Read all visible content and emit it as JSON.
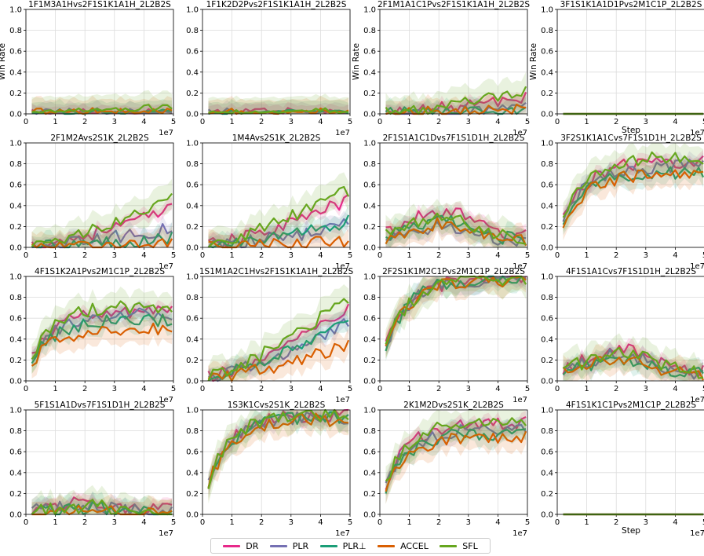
{
  "figure": {
    "legend": [
      {
        "name": "DR",
        "color": "#e7298a"
      },
      {
        "name": "PLR",
        "color": "#7570b3"
      },
      {
        "name": "PLR⊥",
        "color": "#1b9e77"
      },
      {
        "name": "ACCEL",
        "color": "#d95f02"
      },
      {
        "name": "SFL",
        "color": "#66a61e"
      }
    ],
    "x_exponent_label": "1e7",
    "x_label": "Step",
    "y_label": "Win Rate"
  },
  "chart_data": [
    {
      "type": "line",
      "title": "1F1M3A1Hvs2F1S1K1A1H_2L2B2S",
      "ylabel": "Win Rate",
      "xlim": [
        0,
        5
      ],
      "ylim": [
        0,
        1
      ],
      "xticks": [
        0,
        1,
        2,
        3,
        4,
        5
      ],
      "yticks": [
        0,
        0.2,
        0.4,
        0.6,
        0.8,
        1
      ],
      "level": [
        0.02,
        0.02,
        0.02,
        0.02,
        0.05
      ],
      "shape": "flat"
    },
    {
      "type": "line",
      "title": "1F1K2D2Pvs2F1S1K1A1H_2L2B2S",
      "ylabel": "",
      "xlim": [
        0,
        5
      ],
      "ylim": [
        0,
        1
      ],
      "xticks": [
        0,
        1,
        2,
        3,
        4,
        5
      ],
      "yticks": [
        0,
        0.2,
        0.4,
        0.6,
        0.8,
        1
      ],
      "level": [
        0.02,
        0.02,
        0.02,
        0.02,
        0.02
      ],
      "shape": "flat"
    },
    {
      "type": "line",
      "title": "2F1M1A1C1Pvs2F1S1K1A1H_2L2B2S",
      "ylabel": "Win Rate",
      "xlim": [
        0,
        5
      ],
      "ylim": [
        0,
        1
      ],
      "xticks": [
        0,
        1,
        2,
        3,
        4,
        5
      ],
      "yticks": [
        0,
        0.2,
        0.4,
        0.6,
        0.8,
        1
      ],
      "level": [
        0.15,
        0.05,
        0.04,
        0.03,
        0.2
      ],
      "shape": "grow"
    },
    {
      "type": "line",
      "title": "3F1S1K1A1D1Pvs2M1C1P_2L2B2S",
      "ylabel": "Win Rate",
      "xlabel": "Step",
      "xlim": [
        0,
        5
      ],
      "ylim": [
        0,
        1
      ],
      "xticks": [
        0,
        1,
        2,
        3,
        4,
        5
      ],
      "yticks": [
        0,
        0.2,
        0.4,
        0.6,
        0.8,
        1
      ],
      "level": [
        0,
        0,
        0,
        0,
        0
      ],
      "shape": "zero"
    },
    {
      "type": "line",
      "title": "2F1M2Avs2S1K_2L2B2S",
      "ylabel": "",
      "xlim": [
        0,
        5
      ],
      "ylim": [
        0,
        1
      ],
      "xticks": [
        0,
        1,
        2,
        3,
        4,
        5
      ],
      "yticks": [
        0,
        0.2,
        0.4,
        0.6,
        0.8,
        1
      ],
      "level": [
        0.36,
        0.18,
        0.1,
        0.03,
        0.45
      ],
      "shape": "grow"
    },
    {
      "type": "line",
      "title": "1M4Avs2S1K_2L2B2S",
      "ylabel": "",
      "xlim": [
        0,
        5
      ],
      "ylim": [
        0,
        1
      ],
      "xticks": [
        0,
        1,
        2,
        3,
        4,
        5
      ],
      "yticks": [
        0,
        0.2,
        0.4,
        0.6,
        0.8,
        1
      ],
      "level": [
        0.45,
        0.22,
        0.25,
        0.06,
        0.55
      ],
      "shape": "grow"
    },
    {
      "type": "line",
      "title": "2F1S1A1C1Dvs7F1S1D1H_2L2B2S",
      "ylabel": "",
      "xlim": [
        0,
        5
      ],
      "ylim": [
        0,
        1
      ],
      "xticks": [
        0,
        1,
        2,
        3,
        4,
        5
      ],
      "yticks": [
        0,
        0.2,
        0.4,
        0.6,
        0.8,
        1
      ],
      "level": [
        0.35,
        0.2,
        0.25,
        0.22,
        0.3
      ],
      "shape": "hump"
    },
    {
      "type": "line",
      "title": "3F2S1K1A1Cvs7F1S1D1H_2L2B2S",
      "ylabel": "",
      "xlim": [
        0,
        5
      ],
      "ylim": [
        0,
        1
      ],
      "xticks": [
        0,
        1,
        2,
        3,
        4,
        5
      ],
      "yticks": [
        0,
        0.2,
        0.4,
        0.6,
        0.8,
        1
      ],
      "level": [
        0.82,
        0.78,
        0.72,
        0.7,
        0.86
      ],
      "shape": "sat"
    },
    {
      "type": "line",
      "title": "4F1S1K2A1Pvs2M1C1P_2L2B2S",
      "ylabel": "",
      "xlim": [
        0,
        5
      ],
      "ylim": [
        0,
        1
      ],
      "xticks": [
        0,
        1,
        2,
        3,
        4,
        5
      ],
      "yticks": [
        0,
        0.2,
        0.4,
        0.6,
        0.8,
        1
      ],
      "level": [
        0.66,
        0.64,
        0.58,
        0.5,
        0.72
      ],
      "shape": "sat"
    },
    {
      "type": "line",
      "title": "1S1M1A2C1Hvs2F1S1K1A1H_2L2B2S",
      "ylabel": "",
      "xlim": [
        0,
        5
      ],
      "ylim": [
        0,
        1
      ],
      "xticks": [
        0,
        1,
        2,
        3,
        4,
        5
      ],
      "yticks": [
        0,
        0.2,
        0.4,
        0.6,
        0.8,
        1
      ],
      "level": [
        0.68,
        0.55,
        0.6,
        0.34,
        0.8
      ],
      "shape": "grow"
    },
    {
      "type": "line",
      "title": "2F2S1K1M2C1Pvs2M1C1P_2L2B2S",
      "ylabel": "",
      "xlim": [
        0,
        5
      ],
      "ylim": [
        0,
        1
      ],
      "xticks": [
        0,
        1,
        2,
        3,
        4,
        5
      ],
      "yticks": [
        0,
        0.2,
        0.4,
        0.6,
        0.8,
        1
      ],
      "level": [
        0.98,
        0.98,
        0.98,
        0.97,
        0.98
      ],
      "shape": "sat"
    },
    {
      "type": "line",
      "title": "4F1S1A1Cvs7F1S1D1H_2L2B2S",
      "ylabel": "",
      "xlim": [
        0,
        5
      ],
      "ylim": [
        0,
        1
      ],
      "xticks": [
        0,
        1,
        2,
        3,
        4,
        5
      ],
      "yticks": [
        0,
        0.2,
        0.4,
        0.6,
        0.8,
        1
      ],
      "level": [
        0.3,
        0.25,
        0.22,
        0.2,
        0.28
      ],
      "shape": "hump"
    },
    {
      "type": "line",
      "title": "5F1S1A1Dvs7F1S1D1H_2L2B2S",
      "ylabel": "",
      "xlim": [
        0,
        5
      ],
      "ylim": [
        0,
        1
      ],
      "xticks": [
        0,
        1,
        2,
        3,
        4,
        5
      ],
      "yticks": [
        0,
        0.2,
        0.4,
        0.6,
        0.8,
        1
      ],
      "level": [
        0.12,
        0.08,
        0.06,
        0.04,
        0.08
      ],
      "shape": "hump"
    },
    {
      "type": "line",
      "title": "1S3K1Cvs2S1K_2L2B2S",
      "ylabel": "",
      "xlim": [
        0,
        5
      ],
      "ylim": [
        0,
        1
      ],
      "xticks": [
        0,
        1,
        2,
        3,
        4,
        5
      ],
      "yticks": [
        0,
        0.2,
        0.4,
        0.6,
        0.8,
        1
      ],
      "level": [
        0.95,
        0.93,
        0.93,
        0.91,
        0.96
      ],
      "shape": "sat"
    },
    {
      "type": "line",
      "title": "2K1M2Dvs2S1K_2L2B2S",
      "ylabel": "",
      "xlim": [
        0,
        5
      ],
      "ylim": [
        0,
        1
      ],
      "xticks": [
        0,
        1,
        2,
        3,
        4,
        5
      ],
      "yticks": [
        0,
        0.2,
        0.4,
        0.6,
        0.8,
        1
      ],
      "level": [
        0.88,
        0.82,
        0.78,
        0.75,
        0.9
      ],
      "shape": "sat"
    },
    {
      "type": "line",
      "title": "4F1S1K1C1Pvs2M1C1P_2L2B2S",
      "ylabel": "",
      "xlabel": "Step",
      "xlim": [
        0,
        5
      ],
      "ylim": [
        0,
        1
      ],
      "xticks": [
        0,
        1,
        2,
        3,
        4,
        5
      ],
      "yticks": [
        0,
        0.2,
        0.4,
        0.6,
        0.8,
        1
      ],
      "level": [
        0,
        0,
        0,
        0,
        0
      ],
      "shape": "zero"
    }
  ]
}
